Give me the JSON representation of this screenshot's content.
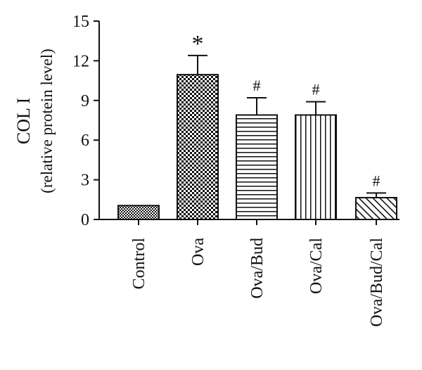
{
  "chart_data": {
    "type": "bar",
    "ylabel_line1": "COL I",
    "ylabel_line2": "(relative protein level)",
    "ylim": [
      0,
      15
    ],
    "yticks": [
      "0",
      "3",
      "6",
      "9",
      "12",
      "15"
    ],
    "categories": [
      "Control",
      "Ova",
      "Ova/Bud",
      "Ova/Cal",
      "Ova/Bud/Cal"
    ],
    "values": [
      1.05,
      10.95,
      7.9,
      7.9,
      1.65
    ],
    "errors": [
      0,
      1.45,
      1.3,
      1.0,
      0.35
    ],
    "patterns": [
      "dense-check",
      "check",
      "horizontal-lines",
      "vertical-lines",
      "diagonal-lines"
    ],
    "annotations": [
      "",
      "*",
      "#",
      "#",
      "#"
    ],
    "grid": false
  }
}
